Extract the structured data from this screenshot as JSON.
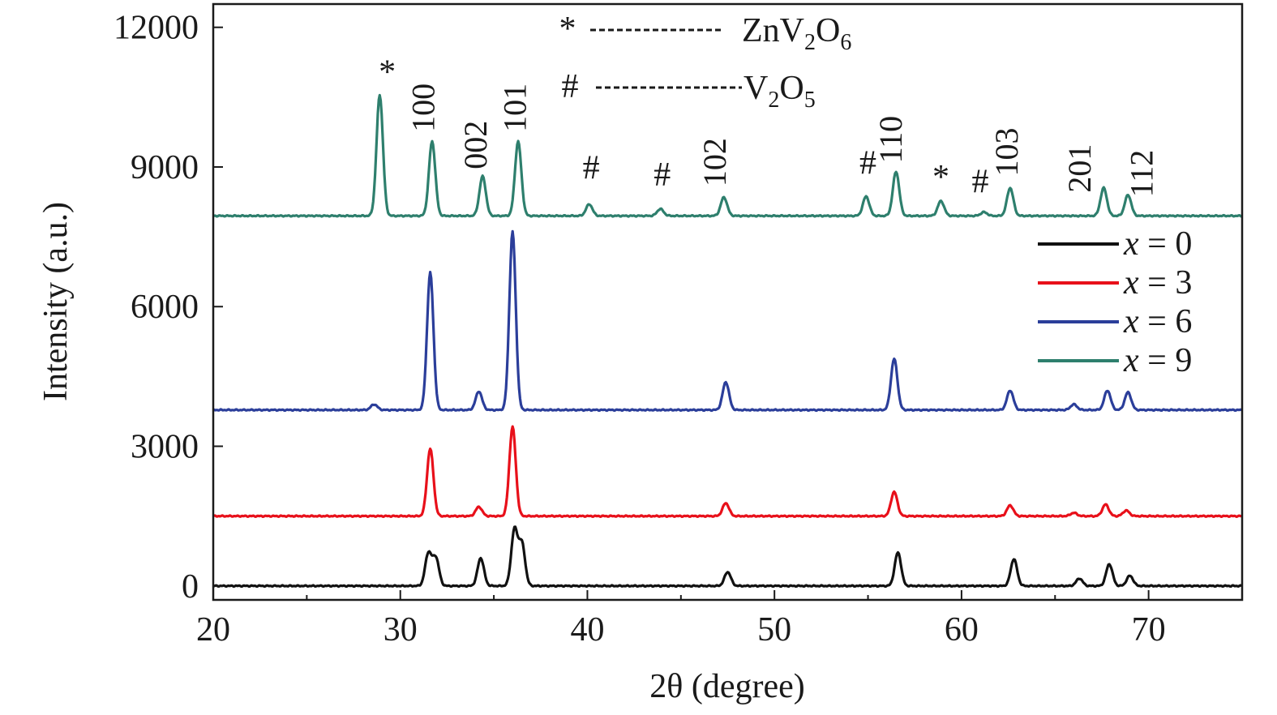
{
  "chart_data": {
    "type": "line",
    "xlabel": "2θ (degree)",
    "ylabel": "Intensity (a.u.)",
    "xlim": [
      20,
      75
    ],
    "ylim": [
      -300,
      12500
    ],
    "x_ticks": [
      20,
      30,
      40,
      50,
      60,
      70
    ],
    "y_ticks": [
      0,
      3000,
      6000,
      9000,
      12000
    ],
    "x_tick_labels": [
      "20",
      "30",
      "40",
      "50",
      "60",
      "70"
    ],
    "y_tick_labels": [
      "0",
      "3000",
      "6000",
      "9000",
      "12000"
    ],
    "grid": false,
    "legend_position": "right",
    "series": [
      {
        "name": "x = 0",
        "color": "#111111",
        "baseline": 0,
        "peaks": [
          [
            31.5,
            700
          ],
          [
            31.9,
            600
          ],
          [
            34.3,
            600
          ],
          [
            36.1,
            1200
          ],
          [
            36.5,
            900
          ],
          [
            47.5,
            300
          ],
          [
            56.6,
            720
          ],
          [
            62.8,
            580
          ],
          [
            66.3,
            160
          ],
          [
            67.9,
            470
          ],
          [
            69.0,
            220
          ]
        ]
      },
      {
        "name": "x = 3",
        "color": "#e8101a",
        "baseline": 1500,
        "peaks": [
          [
            31.6,
            1450
          ],
          [
            34.2,
            200
          ],
          [
            36.0,
            1920
          ],
          [
            47.4,
            280
          ],
          [
            56.4,
            520
          ],
          [
            62.6,
            230
          ],
          [
            66.0,
            70
          ],
          [
            67.7,
            250
          ],
          [
            68.8,
            120
          ]
        ]
      },
      {
        "name": "x = 6",
        "color": "#2b3e9a",
        "baseline": 3780,
        "peaks": [
          [
            28.6,
            120
          ],
          [
            31.6,
            2950
          ],
          [
            34.2,
            400
          ],
          [
            36.0,
            3830
          ],
          [
            47.4,
            600
          ],
          [
            56.4,
            1100
          ],
          [
            62.6,
            420
          ],
          [
            66.0,
            120
          ],
          [
            67.8,
            420
          ],
          [
            68.9,
            380
          ]
        ]
      },
      {
        "name": "x = 9",
        "color": "#2e7f6d",
        "baseline": 7950,
        "peaks": [
          [
            28.9,
            2600
          ],
          [
            31.7,
            1600
          ],
          [
            34.4,
            850
          ],
          [
            36.3,
            1600
          ],
          [
            40.1,
            250
          ],
          [
            43.9,
            150
          ],
          [
            47.3,
            400
          ],
          [
            54.9,
            420
          ],
          [
            56.5,
            950
          ],
          [
            58.9,
            320
          ],
          [
            61.2,
            80
          ],
          [
            62.6,
            600
          ],
          [
            67.6,
            600
          ],
          [
            68.9,
            450
          ]
        ]
      }
    ],
    "peak_labels": [
      {
        "text": "*",
        "x": 29.3,
        "y": 10800,
        "rotate": false
      },
      {
        "text": "100",
        "x": 31.8,
        "y": 9750,
        "rotate": true
      },
      {
        "text": "002",
        "x": 34.6,
        "y": 8950,
        "rotate": true
      },
      {
        "text": "101",
        "x": 36.7,
        "y": 9750,
        "rotate": true
      },
      {
        "text": "#",
        "x": 40.2,
        "y": 8750,
        "rotate": false
      },
      {
        "text": "#",
        "x": 44.0,
        "y": 8600,
        "rotate": false
      },
      {
        "text": "102",
        "x": 47.4,
        "y": 8580,
        "rotate": true
      },
      {
        "text": "#",
        "x": 55.0,
        "y": 8850,
        "rotate": false
      },
      {
        "text": "110",
        "x": 56.8,
        "y": 9080,
        "rotate": true
      },
      {
        "text": "*",
        "x": 58.9,
        "y": 8550,
        "rotate": false
      },
      {
        "text": "#",
        "x": 61.0,
        "y": 8450,
        "rotate": false
      },
      {
        "text": "103",
        "x": 63.0,
        "y": 8800,
        "rotate": true
      },
      {
        "text": "201",
        "x": 66.9,
        "y": 8450,
        "rotate": true
      },
      {
        "text": "112",
        "x": 70.2,
        "y": 8350,
        "rotate": true
      }
    ],
    "phase_key": [
      {
        "symbol": "*",
        "base": "ZnV",
        "sub1": "2",
        "mid": "O",
        "sub2": "6"
      },
      {
        "symbol": "#",
        "base": "V",
        "sub1": "2",
        "mid": "O",
        "sub2": "5"
      }
    ]
  }
}
